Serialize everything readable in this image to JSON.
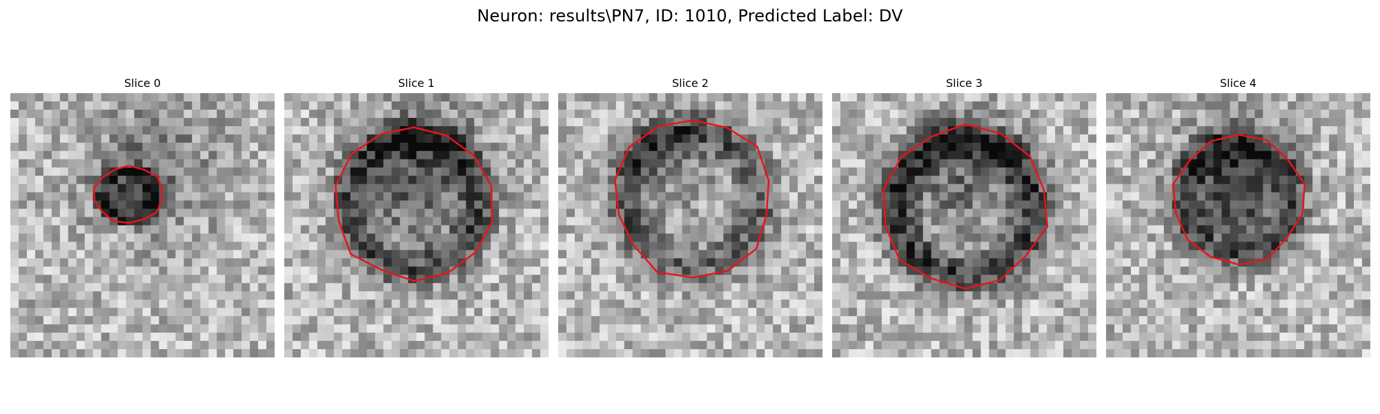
{
  "figure": {
    "title": "Neuron: results\\PN7, ID: 1010, Predicted Label: DV"
  },
  "colors": {
    "contour": "#e8141c",
    "background": "#ffffff"
  },
  "slices": [
    {
      "title": "Slice 0"
    },
    {
      "title": "Slice 1"
    },
    {
      "title": "Slice 2"
    },
    {
      "title": "Slice 3"
    },
    {
      "title": "Slice 4"
    }
  ]
}
